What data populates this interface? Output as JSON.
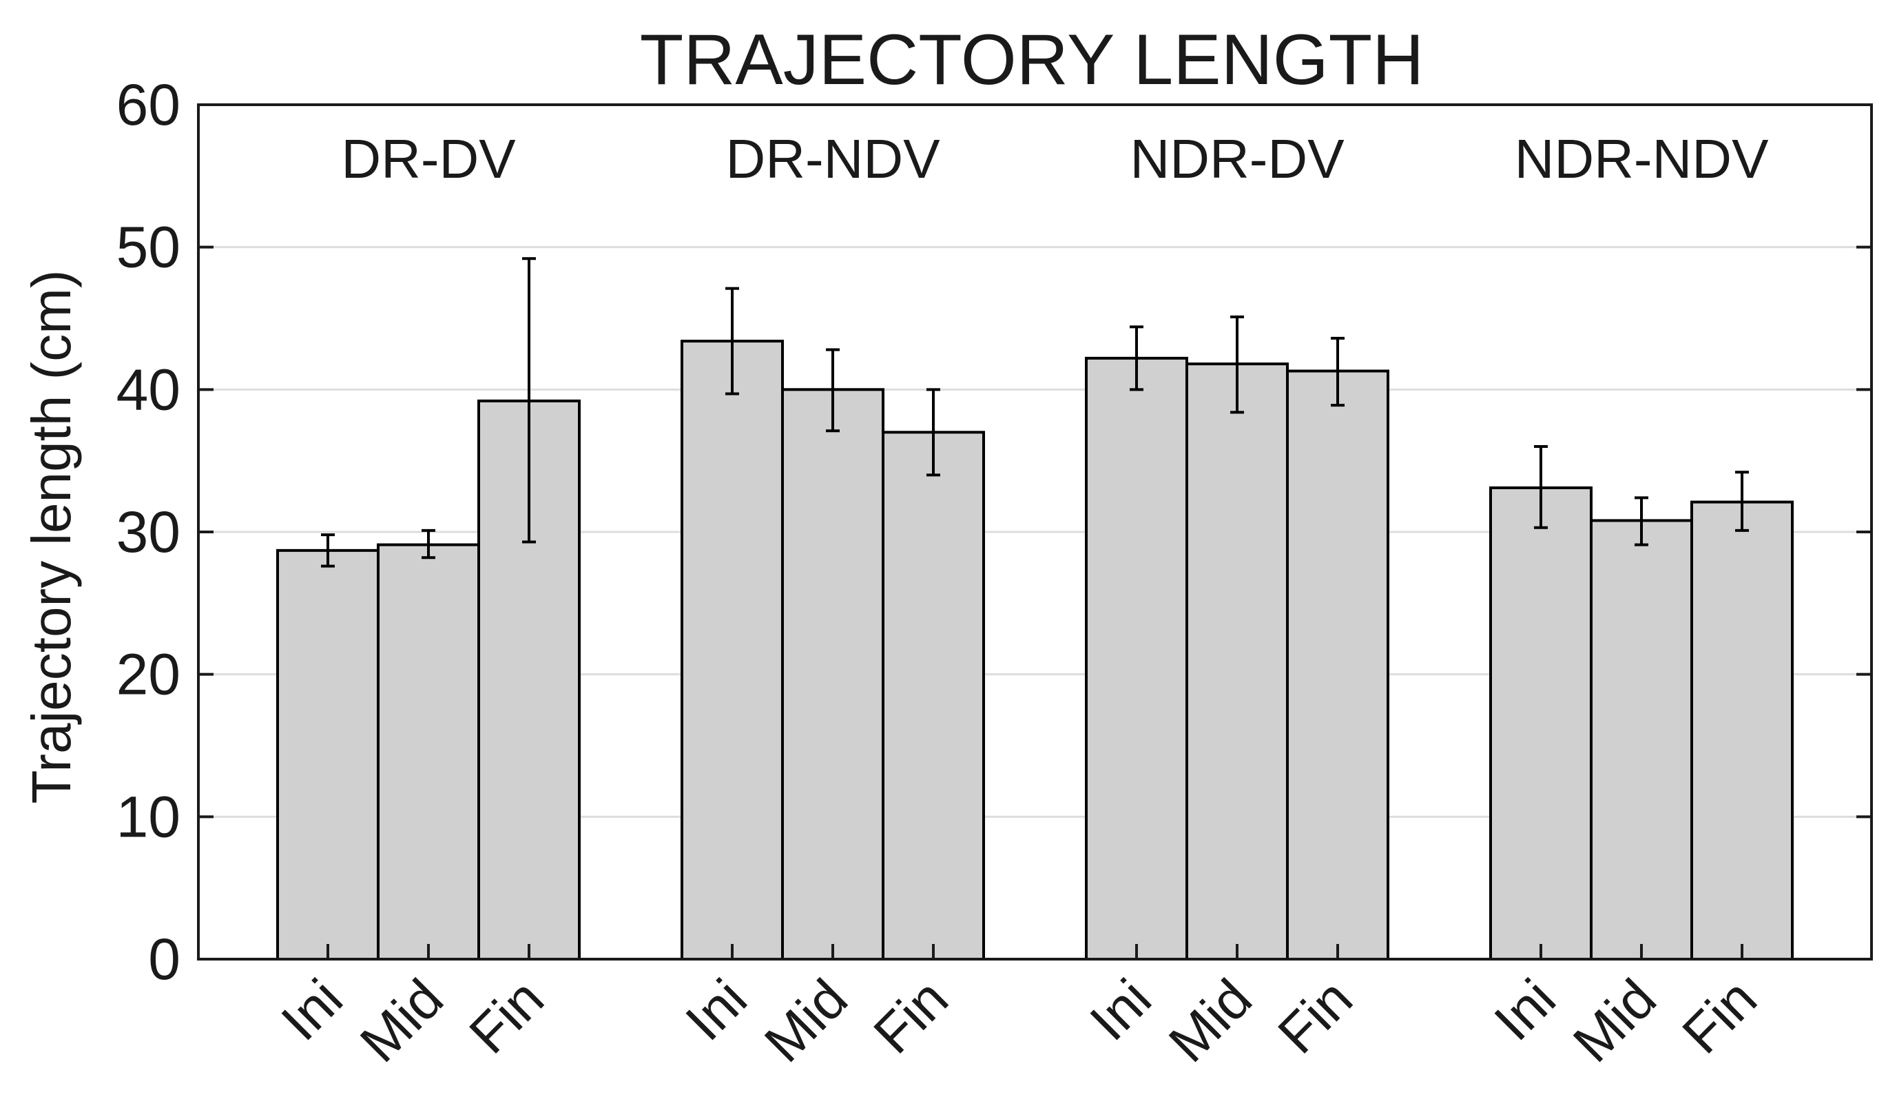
{
  "chart_data": {
    "type": "bar",
    "title": "TRAJECTORY LENGTH",
    "xlabel": "",
    "ylabel": "Trajectory length (cm)",
    "ylim": [
      0,
      60
    ],
    "yticks": [
      0,
      10,
      20,
      30,
      40,
      50,
      60
    ],
    "grid": true,
    "colors": {
      "bar_fill": "#d0d0d0",
      "bar_stroke": "#000000",
      "grid": "#dddddd",
      "axis": "#1a1a1a",
      "error_bar": "#000000"
    },
    "groups": [
      {
        "name": "DR-DV",
        "bars": [
          {
            "label": "Ini",
            "value": 28.7,
            "err_low": 27.6,
            "err_high": 29.8
          },
          {
            "label": "Mid",
            "value": 29.1,
            "err_low": 28.2,
            "err_high": 30.1
          },
          {
            "label": "Fin",
            "value": 39.2,
            "err_low": 29.3,
            "err_high": 49.2
          }
        ]
      },
      {
        "name": "DR-NDV",
        "bars": [
          {
            "label": "Ini",
            "value": 43.4,
            "err_low": 39.7,
            "err_high": 47.1
          },
          {
            "label": "Mid",
            "value": 40.0,
            "err_low": 37.1,
            "err_high": 42.8
          },
          {
            "label": "Fin",
            "value": 37.0,
            "err_low": 34.0,
            "err_high": 40.0
          }
        ]
      },
      {
        "name": "NDR-DV",
        "bars": [
          {
            "label": "Ini",
            "value": 42.2,
            "err_low": 40.0,
            "err_high": 44.4
          },
          {
            "label": "Mid",
            "value": 41.8,
            "err_low": 38.4,
            "err_high": 45.1
          },
          {
            "label": "Fin",
            "value": 41.3,
            "err_low": 38.9,
            "err_high": 43.6
          }
        ]
      },
      {
        "name": "NDR-NDV",
        "bars": [
          {
            "label": "Ini",
            "value": 33.1,
            "err_low": 30.3,
            "err_high": 36.0
          },
          {
            "label": "Mid",
            "value": 30.8,
            "err_low": 29.1,
            "err_high": 32.4
          },
          {
            "label": "Fin",
            "value": 32.1,
            "err_low": 30.1,
            "err_high": 34.2
          }
        ]
      }
    ]
  }
}
